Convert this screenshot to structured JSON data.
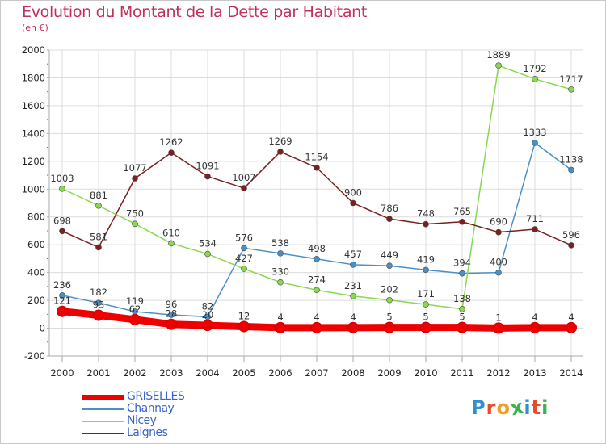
{
  "header": {
    "title": "Evolution du Montant de la Dette par Habitant",
    "unit": "(en €)"
  },
  "logo": {
    "text": "Proxiti",
    "letters": [
      "P",
      "r",
      "o",
      "x",
      "i",
      "t",
      "i"
    ],
    "colors": [
      "#2d8fd6",
      "#e84a2a",
      "#f0a020",
      "#3bb24a",
      "#2d8fd6",
      "#e84a2a",
      "#3bb24a"
    ]
  },
  "chart_data": {
    "type": "line",
    "title": "Evolution du Montant de la Dette par Habitant",
    "subtitle": "(en €)",
    "xlabel": "",
    "ylabel": "",
    "x": [
      2000,
      2001,
      2002,
      2003,
      2004,
      2005,
      2006,
      2007,
      2008,
      2009,
      2010,
      2011,
      2012,
      2013,
      2014
    ],
    "yticks": [
      -200,
      0,
      200,
      400,
      600,
      800,
      1000,
      1200,
      1400,
      1600,
      1800,
      2000
    ],
    "ylim": [
      -200,
      2000
    ],
    "grid": true,
    "legend_position": "bottom-left",
    "series": [
      {
        "name": "GRISELLES",
        "color": "#ee0000",
        "values": [
          121,
          93,
          62,
          28,
          20,
          12,
          4,
          4,
          4,
          5,
          5,
          5,
          1,
          4,
          4
        ],
        "labels": [
          "121",
          "93",
          "62",
          "28",
          "20",
          "12",
          "4",
          "4",
          "4",
          "5",
          "5",
          "5",
          "1",
          "4",
          "4"
        ]
      },
      {
        "name": "Channay",
        "color": "#4a90c8",
        "values": [
          236,
          182,
          119,
          96,
          82,
          576,
          538,
          498,
          457,
          449,
          419,
          394,
          400,
          1333,
          1138
        ],
        "labels": [
          "236",
          "182",
          "119",
          "96",
          "82",
          "576",
          "538",
          "498",
          "457",
          "449",
          "419",
          "394",
          "400",
          "1333",
          "1138"
        ]
      },
      {
        "name": "Nicey",
        "color": "#88d850",
        "values": [
          1003,
          881,
          750,
          610,
          534,
          427,
          330,
          274,
          231,
          202,
          171,
          138,
          1889,
          1792,
          1717
        ],
        "labels": [
          "1003",
          "881",
          "750",
          "610",
          "534",
          "427",
          "330",
          "274",
          "231",
          "202",
          "171",
          "138",
          "1889",
          "1792",
          "1717"
        ]
      },
      {
        "name": "Laignes",
        "color": "#7a2020",
        "values": [
          698,
          581,
          1077,
          1262,
          1091,
          1007,
          1269,
          1154,
          900,
          786,
          748,
          765,
          690,
          711,
          596
        ],
        "labels": [
          "698",
          "581",
          "1077",
          "1262",
          "1091",
          "1007",
          "1269",
          "1154",
          "900",
          "786",
          "748",
          "765",
          "690",
          "711",
          "596"
        ]
      }
    ]
  }
}
